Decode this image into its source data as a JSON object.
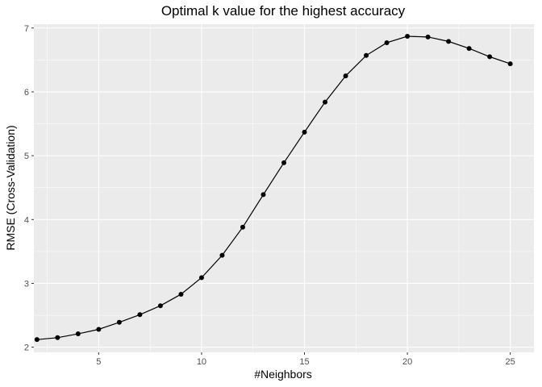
{
  "chart_data": {
    "type": "line",
    "title": "Optimal k value for the highest accuracy",
    "xlabel": "#Neighbors",
    "ylabel": "RMSE (Cross-Validation)",
    "xlim": [
      1.85,
      26.15
    ],
    "ylim": [
      1.92,
      7.06
    ],
    "xticks": [
      5,
      10,
      15,
      20,
      25
    ],
    "yticks": [
      2,
      3,
      4,
      5,
      6,
      7
    ],
    "grid": true,
    "legend": "none",
    "series": [
      {
        "x": [
          2,
          3,
          4,
          5,
          6,
          7,
          8,
          9,
          10,
          11,
          12,
          13,
          14,
          15,
          16,
          17,
          18,
          19,
          20,
          21,
          22,
          23,
          24,
          25
        ],
        "y": [
          2.12,
          2.15,
          2.21,
          2.28,
          2.39,
          2.51,
          2.65,
          2.83,
          3.09,
          3.44,
          3.88,
          4.39,
          4.89,
          5.37,
          5.84,
          6.25,
          6.57,
          6.77,
          6.87,
          6.86,
          6.79,
          6.68,
          6.55,
          6.44
        ],
        "color": "#000000"
      }
    ]
  }
}
